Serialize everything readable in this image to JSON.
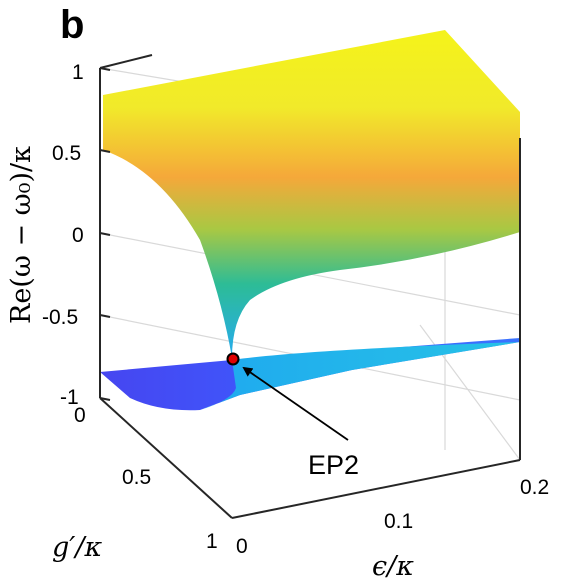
{
  "figure": {
    "panel_label": "b"
  },
  "chart_data": {
    "type": "surface3d",
    "title": "",
    "zlabel": "Re(ω − ω₀)/κ",
    "xlabel": "ϵ/κ",
    "ylabel": "g′/κ",
    "zlim": [
      -1,
      1
    ],
    "xlim": [
      0,
      0.2
    ],
    "ylim": [
      0,
      1
    ],
    "z_ticks": [
      "1",
      "0.5",
      "0",
      "-0.5",
      "-1"
    ],
    "x_ticks": [
      "0",
      "0.1",
      "0.2"
    ],
    "y_ticks": [
      "0",
      "0.5",
      "1"
    ],
    "grid": true,
    "colormap": "parula",
    "branches": [
      {
        "description": "upper branch",
        "approx_z_at_corners": {
          "eps0_g0": 0.75,
          "eps0_g1": -0.05,
          "eps02_g0": 1.0,
          "eps02_g1": 0.45
        }
      },
      {
        "description": "lower branch",
        "approx_z": -0.85
      }
    ],
    "annotations": [
      {
        "text": "EP2",
        "point": {
          "eps": 0.0,
          "g": 0.7,
          "z": -0.8
        },
        "marker_color": "#e00000"
      }
    ]
  }
}
